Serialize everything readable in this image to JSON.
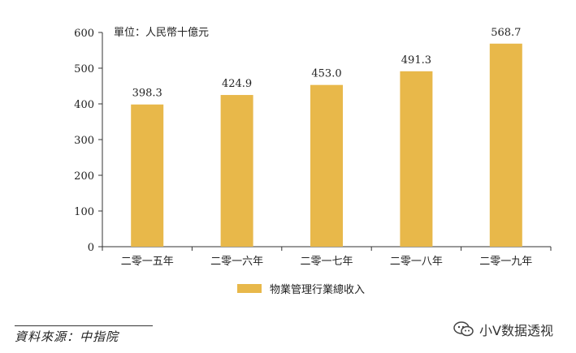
{
  "chart_data": {
    "type": "bar",
    "unit_label": "單位：人民幣十億元",
    "categories": [
      "二零一五年",
      "二零一六年",
      "二零一七年",
      "二零一八年",
      "二零一九年"
    ],
    "series": [
      {
        "name": "物業管理行業總收入",
        "values": [
          398.3,
          424.9,
          453.0,
          491.3,
          568.7
        ]
      }
    ],
    "data_labels": [
      "398.3",
      "424.9",
      "453.0",
      "491.3",
      "568.7"
    ],
    "yticks": [
      "0",
      "100",
      "200",
      "300",
      "400",
      "500",
      "600"
    ],
    "ylim": [
      0,
      600
    ],
    "grid": false,
    "legend_position": "bottom",
    "bar_color": "#E8B84A"
  },
  "source": "資料來源：中指院",
  "watermark": {
    "text": "小V数据透视",
    "icon": "wechat-icon"
  }
}
